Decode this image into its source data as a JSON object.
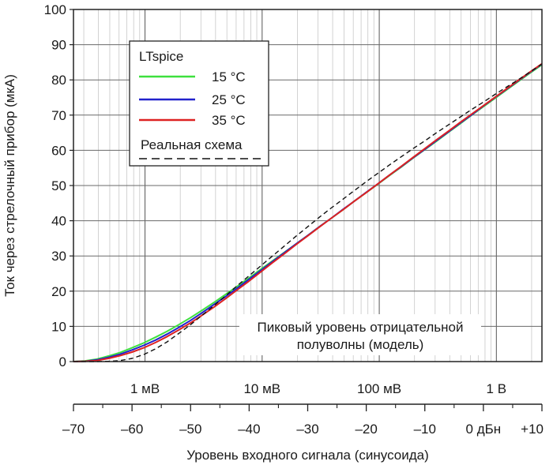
{
  "chart_data": {
    "type": "line",
    "y_axis": {
      "label": "Ток через стрелочный прибор (мкА)",
      "min": 0,
      "max": 100,
      "ticks": [
        0,
        10,
        20,
        30,
        40,
        50,
        60,
        70,
        80,
        90,
        100
      ]
    },
    "x_axis": {
      "label": "Уровень входного сигнала (синусоида)",
      "scale": "dBu",
      "min": -70,
      "max": 10,
      "ticks": [
        {
          "value": -70,
          "label": "–70"
        },
        {
          "value": -60,
          "label": "–60"
        },
        {
          "value": -50,
          "label": "–50"
        },
        {
          "value": -40,
          "label": "–40"
        },
        {
          "value": -30,
          "label": "–30"
        },
        {
          "value": -20,
          "label": "–20"
        },
        {
          "value": -10,
          "label": "–10"
        },
        {
          "value": 0,
          "label": "0 дБн"
        },
        {
          "value": 10,
          "label": "+10"
        }
      ]
    },
    "voltage_axis": {
      "scale": "log",
      "ticks": [
        {
          "volts": 0.001,
          "label": "1 мВ"
        },
        {
          "volts": 0.01,
          "label": "10 мВ"
        },
        {
          "volts": 0.1,
          "label": "100 мВ"
        },
        {
          "volts": 1,
          "label": "1 В"
        }
      ]
    },
    "grid": true,
    "legend": {
      "title": "LTspice",
      "position": "top-left"
    },
    "annotation": {
      "lines": [
        "Пиковый уровень отрицательной",
        "полуволны (модель)"
      ]
    },
    "series": [
      {
        "name": "15 °C",
        "color": "#3ee03e",
        "style": "solid",
        "x": [
          -70,
          -68,
          -66,
          -64,
          -62,
          -60,
          -58,
          -56,
          -54,
          -52,
          -50,
          -48,
          -46,
          -44,
          -42,
          -40,
          -38,
          -36,
          -34,
          -32,
          -30,
          -28,
          -26,
          -24,
          -22,
          -20,
          -18,
          -16,
          -14,
          -12,
          -10,
          -8,
          -6,
          -4,
          -2,
          0,
          2,
          4,
          6,
          8,
          10
        ],
        "y": [
          0,
          0.2,
          0.7,
          1.6,
          2.6,
          3.9,
          5.3,
          6.9,
          8.6,
          10.5,
          12.5,
          14.6,
          16.8,
          19.1,
          21.4,
          23.8,
          26.2,
          28.6,
          31.0,
          33.4,
          35.8,
          38.3,
          40.7,
          43.1,
          45.6,
          48.0,
          50.4,
          52.9,
          55.3,
          57.8,
          60.2,
          62.6,
          65.1,
          67.5,
          70.0,
          72.4,
          74.8,
          77.2,
          79.6,
          82.0,
          84.3
        ]
      },
      {
        "name": "25 °C",
        "color": "#2222cc",
        "style": "solid",
        "x": [
          -70,
          -68,
          -66,
          -64,
          -62,
          -60,
          -58,
          -56,
          -54,
          -52,
          -50,
          -48,
          -46,
          -44,
          -42,
          -40,
          -38,
          -36,
          -34,
          -32,
          -30,
          -28,
          -26,
          -24,
          -22,
          -20,
          -18,
          -16,
          -14,
          -12,
          -10,
          -8,
          -6,
          -4,
          -2,
          0,
          2,
          4,
          6,
          8,
          10
        ],
        "y": [
          0,
          0.1,
          0.5,
          1.2,
          2.1,
          3.3,
          4.6,
          6.1,
          7.8,
          9.7,
          11.7,
          13.9,
          16.2,
          18.5,
          20.9,
          23.4,
          25.9,
          28.4,
          30.9,
          33.4,
          35.8,
          38.3,
          40.7,
          43.2,
          45.6,
          48.1,
          50.5,
          53.0,
          55.4,
          57.9,
          60.3,
          62.8,
          65.2,
          67.7,
          70.1,
          72.6,
          75.0,
          77.4,
          79.8,
          82.2,
          84.5
        ]
      },
      {
        "name": "35 °C",
        "color": "#dd2222",
        "style": "solid",
        "x": [
          -70,
          -68,
          -66,
          -64,
          -62,
          -60,
          -58,
          -56,
          -54,
          -52,
          -50,
          -48,
          -46,
          -44,
          -42,
          -40,
          -38,
          -36,
          -34,
          -32,
          -30,
          -28,
          -26,
          -24,
          -22,
          -20,
          -18,
          -16,
          -14,
          -12,
          -10,
          -8,
          -6,
          -4,
          -2,
          0,
          2,
          4,
          6,
          8,
          10
        ],
        "y": [
          0,
          0.1,
          0.3,
          0.9,
          1.7,
          2.7,
          3.9,
          5.4,
          7.1,
          9.0,
          11.0,
          13.2,
          15.5,
          17.9,
          20.4,
          22.9,
          25.5,
          28.1,
          30.6,
          33.2,
          35.7,
          38.2,
          40.7,
          43.1,
          45.6,
          48.0,
          50.5,
          53.0,
          55.5,
          58.0,
          60.5,
          63.0,
          65.4,
          67.9,
          70.3,
          72.7,
          75.1,
          77.5,
          79.9,
          82.3,
          84.6
        ]
      },
      {
        "name": "Реальная схема",
        "color": "#111111",
        "style": "dashed",
        "x": [
          -70,
          -68,
          -66,
          -64,
          -62,
          -60,
          -58,
          -56,
          -54,
          -52,
          -50,
          -48,
          -46,
          -44,
          -42,
          -40,
          -38,
          -36,
          -34,
          -32,
          -30,
          -28,
          -26,
          -24,
          -22,
          -20,
          -18,
          -16,
          -14,
          -12,
          -10,
          -8,
          -6,
          -4,
          -2,
          0,
          2,
          4,
          6,
          8,
          10
        ],
        "y": [
          0,
          0,
          0,
          0.1,
          0.3,
          0.9,
          2.0,
          3.6,
          5.6,
          8.0,
          10.5,
          13.2,
          15.9,
          18.7,
          21.6,
          24.4,
          27.2,
          30.0,
          32.8,
          35.6,
          38.3,
          41.0,
          43.6,
          46.1,
          48.6,
          51.1,
          53.5,
          55.9,
          58.2,
          60.5,
          62.7,
          65.0,
          67.2,
          69.4,
          71.6,
          73.7,
          75.9,
          78.0,
          80.1,
          82.3,
          84.5
        ]
      }
    ]
  }
}
